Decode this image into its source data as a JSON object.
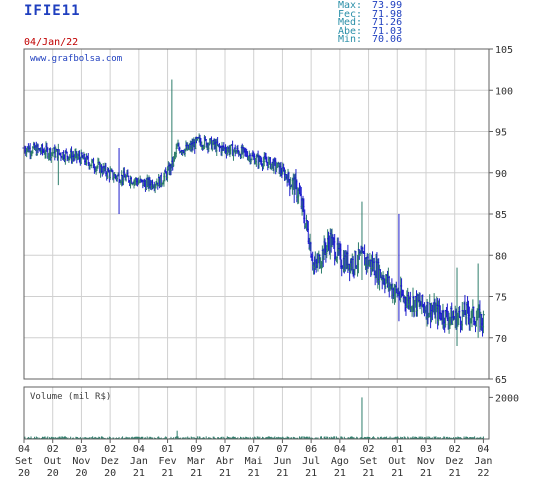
{
  "header": {
    "ticker": "IFIE11",
    "date": "04/Jan/22",
    "stats": [
      {
        "label": "Max:",
        "value": "73.99"
      },
      {
        "label": "Fec:",
        "value": "71.98"
      },
      {
        "label": "Med:",
        "value": "71.26"
      },
      {
        "label": "Abe:",
        "value": "71.03"
      },
      {
        "label": "Min:",
        "value": "70.06"
      }
    ]
  },
  "colors": {
    "up": "#2e7d6b",
    "down": "#1c1ccc",
    "volume": "#2e7d6b",
    "grid": "#d0d0d0",
    "frame": "#606060",
    "watermark": "#1f3fbf"
  },
  "chart_data": {
    "type": "ohlc",
    "watermark": "www.grafbolsa.com",
    "price_axis": {
      "min": 65,
      "max": 105,
      "ticks": [
        "105",
        "100",
        "95",
        "90",
        "85",
        "80",
        "75",
        "70",
        "65"
      ]
    },
    "volume_label": "Volume (mil R$)",
    "volume_axis": {
      "min": 0,
      "max": 2500,
      "ticks": [
        "2000"
      ]
    },
    "x_labels": [
      {
        "day": "04",
        "mon": "Set",
        "yr": "20"
      },
      {
        "day": "02",
        "mon": "Out",
        "yr": "20"
      },
      {
        "day": "03",
        "mon": "Nov",
        "yr": "20"
      },
      {
        "day": "02",
        "mon": "Dez",
        "yr": "20"
      },
      {
        "day": "04",
        "mon": "Jan",
        "yr": "21"
      },
      {
        "day": "01",
        "mon": "Fev",
        "yr": "21"
      },
      {
        "day": "09",
        "mon": "Mar",
        "yr": "21"
      },
      {
        "day": "07",
        "mon": "Abr",
        "yr": "21"
      },
      {
        "day": "07",
        "mon": "Mai",
        "yr": "21"
      },
      {
        "day": "07",
        "mon": "Jun",
        "yr": "21"
      },
      {
        "day": "06",
        "mon": "Jul",
        "yr": "21"
      },
      {
        "day": "04",
        "mon": "Ago",
        "yr": "21"
      },
      {
        "day": "02",
        "mon": "Set",
        "yr": "21"
      },
      {
        "day": "01",
        "mon": "Out",
        "yr": "21"
      },
      {
        "day": "03",
        "mon": "Nov",
        "yr": "21"
      },
      {
        "day": "02",
        "mon": "Dez",
        "yr": "21"
      },
      {
        "day": "04",
        "mon": "Jan",
        "yr": "22"
      }
    ],
    "price_path": [
      [
        0,
        93.0
      ],
      [
        8,
        92.6
      ],
      [
        16,
        92.2
      ],
      [
        22,
        91.7
      ],
      [
        28,
        90.7
      ],
      [
        34,
        89.6
      ],
      [
        40,
        89.3
      ],
      [
        46,
        88.6
      ],
      [
        52,
        89.0
      ],
      [
        56,
        90.8
      ],
      [
        58,
        93.0
      ],
      [
        62,
        92.8
      ],
      [
        66,
        93.8
      ],
      [
        70,
        93.6
      ],
      [
        74,
        93.0
      ],
      [
        78,
        92.8
      ],
      [
        84,
        92.3
      ],
      [
        88,
        91.6
      ],
      [
        92,
        91.3
      ],
      [
        96,
        90.7
      ],
      [
        100,
        89.4
      ],
      [
        104,
        87.6
      ],
      [
        108,
        82.0
      ],
      [
        110,
        78.3
      ],
      [
        113,
        80.2
      ],
      [
        116,
        81.9
      ],
      [
        118,
        80.6
      ],
      [
        120,
        79.4
      ],
      [
        124,
        79.1
      ],
      [
        128,
        79.7
      ],
      [
        132,
        78.8
      ],
      [
        136,
        77.4
      ],
      [
        140,
        75.7
      ],
      [
        144,
        74.8
      ],
      [
        148,
        74.3
      ],
      [
        152,
        73.7
      ],
      [
        156,
        73.1
      ],
      [
        160,
        72.6
      ],
      [
        164,
        72.3
      ],
      [
        167,
        73.0
      ],
      [
        171,
        72.5
      ],
      [
        174,
        72.0
      ]
    ],
    "spikes": [
      {
        "week": 13,
        "high": 93.5,
        "low": 88.5
      },
      {
        "week": 36,
        "high": 93.0,
        "low": 85.0
      },
      {
        "week": 56,
        "high": 101.3,
        "low": 90.5
      },
      {
        "week": 128,
        "high": 86.5,
        "low": 77.0
      },
      {
        "week": 142,
        "high": 85.0,
        "low": 72.0
      },
      {
        "week": 164,
        "high": 78.5,
        "low": 69.0
      },
      {
        "week": 172,
        "high": 79.0,
        "low": 70.0
      }
    ],
    "volume_spikes": [
      {
        "week": 58,
        "value": 400
      },
      {
        "week": 128,
        "value": 2000
      }
    ]
  }
}
